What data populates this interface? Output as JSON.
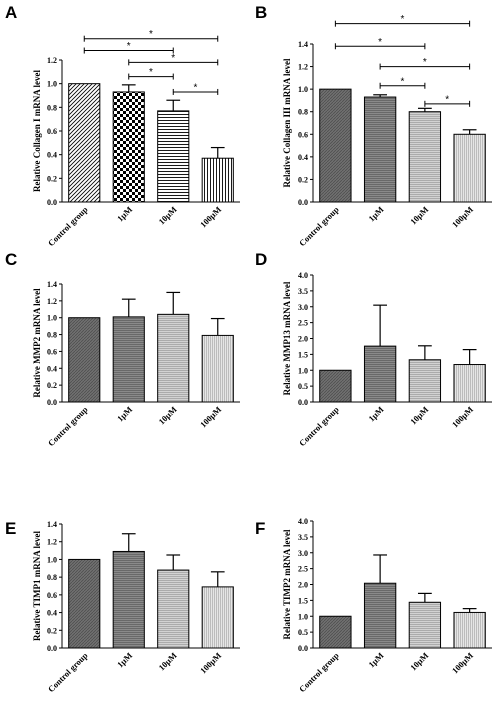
{
  "chart_data": [
    {
      "panel": "A",
      "type": "bar",
      "ylabel": "Relative Collagen I mRNA level",
      "categories": [
        "Control group",
        "1μM",
        "10μM",
        "100μM"
      ],
      "values": [
        1.0,
        0.93,
        0.77,
        0.37
      ],
      "errors": [
        0,
        0.06,
        0.09,
        0.09
      ],
      "ylim": [
        0,
        1.2
      ],
      "yticks": [
        "0.0",
        "0.2",
        "0.4",
        "0.6",
        "0.8",
        "1.0",
        "1.2"
      ],
      "significance": [
        {
          "from": 0,
          "to": 3,
          "y": 1.38,
          "label": "*"
        },
        {
          "from": 0,
          "to": 2,
          "y": 1.28,
          "label": "*"
        },
        {
          "from": 1,
          "to": 3,
          "y": 1.18,
          "label": "*"
        },
        {
          "from": 1,
          "to": 2,
          "y": 1.06,
          "label": "*"
        },
        {
          "from": 2,
          "to": 3,
          "y": 0.93,
          "label": "*"
        }
      ]
    },
    {
      "panel": "B",
      "type": "bar",
      "ylabel": "Relative Collagen III mRNA level",
      "categories": [
        "Control group",
        "1μM",
        "10μM",
        "100μM"
      ],
      "values": [
        1.0,
        0.93,
        0.8,
        0.6
      ],
      "errors": [
        0,
        0.02,
        0.03,
        0.04
      ],
      "ylim": [
        0,
        1.4
      ],
      "yticks": [
        "0.0",
        "0.2",
        "0.4",
        "0.6",
        "0.8",
        "1.0",
        "1.2",
        "1.4"
      ],
      "significance": [
        {
          "from": 0,
          "to": 3,
          "y": 1.58,
          "label": "*"
        },
        {
          "from": 0,
          "to": 2,
          "y": 1.38,
          "label": "*"
        },
        {
          "from": 1,
          "to": 3,
          "y": 1.2,
          "label": "*"
        },
        {
          "from": 1,
          "to": 2,
          "y": 1.03,
          "label": "*"
        },
        {
          "from": 2,
          "to": 3,
          "y": 0.87,
          "label": "*"
        }
      ]
    },
    {
      "panel": "C",
      "type": "bar",
      "ylabel": "Relative MMP2 mRNA level",
      "categories": [
        "Control group",
        "1μM",
        "10μM",
        "100μM"
      ],
      "values": [
        1.0,
        1.01,
        1.04,
        0.79
      ],
      "errors": [
        0,
        0.21,
        0.26,
        0.2
      ],
      "ylim": [
        0,
        1.4
      ],
      "yticks": [
        "0.0",
        "0.2",
        "0.4",
        "0.6",
        "0.8",
        "1.0",
        "1.2",
        "1.4"
      ],
      "significance": []
    },
    {
      "panel": "D",
      "type": "bar",
      "ylabel": "Relative MMP13 mRNA level",
      "categories": [
        "Control group",
        "1μM",
        "10μM",
        "100μM"
      ],
      "values": [
        1.0,
        1.76,
        1.33,
        1.18
      ],
      "errors": [
        0,
        1.29,
        0.44,
        0.47
      ],
      "ylim": [
        0,
        4.0
      ],
      "yticks": [
        "0.0",
        "0.5",
        "1.0",
        "1.5",
        "2.0",
        "2.5",
        "3.0",
        "3.5",
        "4.0"
      ],
      "significance": []
    },
    {
      "panel": "E",
      "type": "bar",
      "ylabel": "Relative TIMP1 mRNA level",
      "categories": [
        "Control group",
        "1μM",
        "10μM",
        "100μM"
      ],
      "values": [
        1.0,
        1.09,
        0.88,
        0.69
      ],
      "errors": [
        0,
        0.2,
        0.17,
        0.17
      ],
      "ylim": [
        0,
        1.4
      ],
      "yticks": [
        "0.0",
        "0.2",
        "0.4",
        "0.6",
        "0.8",
        "1.0",
        "1.2",
        "1.4"
      ],
      "significance": []
    },
    {
      "panel": "F",
      "type": "bar",
      "ylabel": "Relative TIMP2 mRNA level",
      "categories": [
        "Control group",
        "1μM",
        "10μM",
        "100μM"
      ],
      "values": [
        1.0,
        2.04,
        1.44,
        1.12
      ],
      "errors": [
        0,
        0.89,
        0.28,
        0.12
      ],
      "ylim": [
        0,
        4.0
      ],
      "yticks": [
        "0.0",
        "0.5",
        "1.0",
        "1.5",
        "2.0",
        "2.5",
        "3.0",
        "3.5",
        "4.0"
      ],
      "significance": []
    }
  ]
}
